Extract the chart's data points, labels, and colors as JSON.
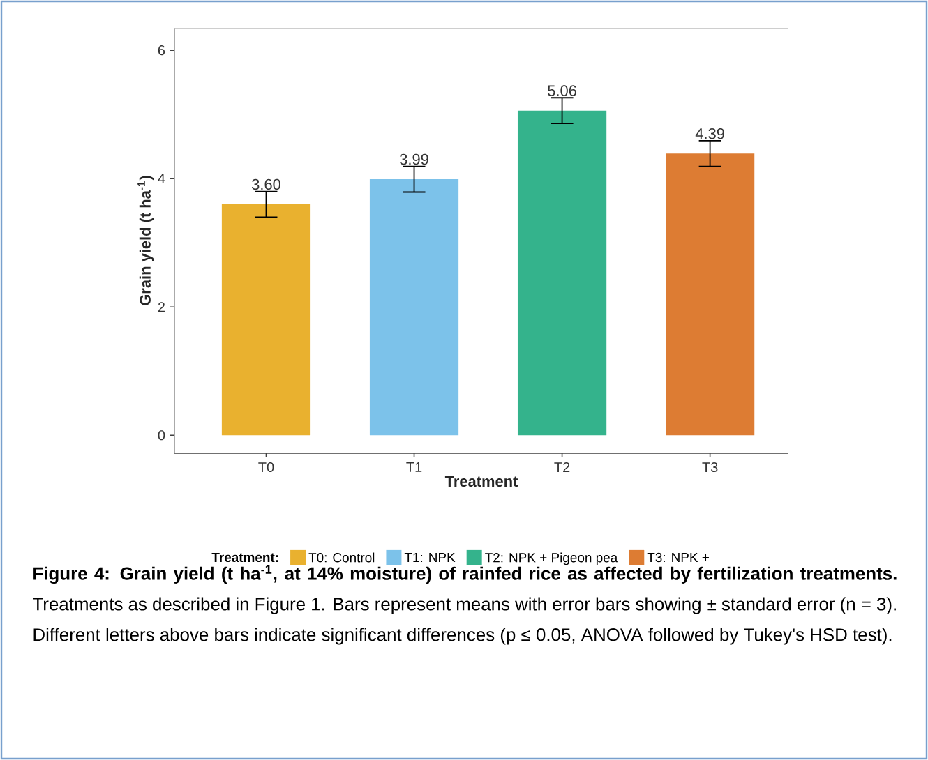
{
  "chart_data": {
    "type": "bar",
    "title": "Figure 4: Grain yield (t ha$^{-1}$, at 14% moisture) of rainfed rice as affected by fertilization treatments.",
    "annotations": [
      "Treatments as described in Figure 1. Bars represent means with error bars showing ± standard error (n = 3). Different letters above bars indicate significant differences (p ≤ 0.05, ANOVA followed by Tukey's HSD test)."
    ],
    "xlabel": "Treatment",
    "ylabel": "Grain yield (t ha$^{-1}$)",
    "legend_title": "Treatment:",
    "categories": [
      "T0",
      "T1",
      "T2",
      "T3"
    ],
    "series": [
      {
        "name": "T0: Control",
        "color": "#e9b12f",
        "values": [
          3.6,
          null,
          null,
          null
        ],
        "errors": [
          0.2,
          null,
          null,
          null
        ],
        "value_labels": [
          "3.60",
          null,
          null,
          null
        ]
      },
      {
        "name": "T1: NPK",
        "color": "#7cc2ea",
        "values": [
          null,
          3.99,
          null,
          null
        ],
        "errors": [
          null,
          0.2,
          null,
          null
        ],
        "value_labels": [
          null,
          "3.99",
          null,
          null
        ]
      },
      {
        "name": "T2: NPK + Pigeon pea",
        "color": "#34b38c",
        "values": [
          null,
          null,
          5.06,
          null
        ],
        "errors": [
          null,
          null,
          0.2,
          null
        ],
        "value_labels": [
          null,
          null,
          "5.06",
          null
        ]
      },
      {
        "name": "T3: NPK +",
        "color": "#dd7c33",
        "values": [
          null,
          null,
          null,
          4.39
        ],
        "errors": [
          null,
          null,
          null,
          0.2
        ],
        "value_labels": [
          null,
          null,
          null,
          "4.39"
        ]
      }
    ],
    "ylim": [
      -0.28,
      6.35
    ],
    "yticks": [
      0,
      2,
      4,
      6
    ],
    "legend": "bottom"
  }
}
